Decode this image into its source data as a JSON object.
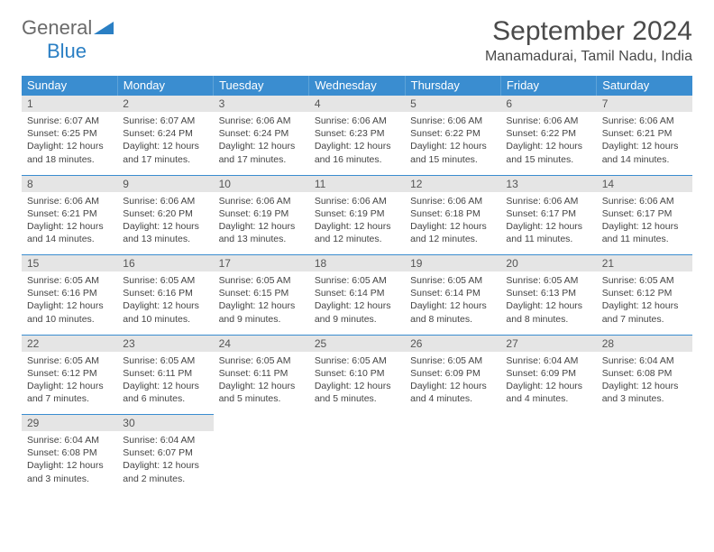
{
  "brand": {
    "general": "General",
    "blue": "Blue"
  },
  "title": "September 2024",
  "location": "Manamadurai, Tamil Nadu, India",
  "colors": {
    "header_bg": "#3a8dd0",
    "header_text": "#ffffff",
    "daynum_bg": "#e5e5e5",
    "border": "#3a8dd0",
    "text": "#444444",
    "brand_gray": "#6a6a6a",
    "brand_blue": "#2a7fc4"
  },
  "weekdays": [
    "Sunday",
    "Monday",
    "Tuesday",
    "Wednesday",
    "Thursday",
    "Friday",
    "Saturday"
  ],
  "weeks": [
    [
      {
        "n": "1",
        "sr": "6:07 AM",
        "ss": "6:25 PM",
        "dl": "12 hours and 18 minutes."
      },
      {
        "n": "2",
        "sr": "6:07 AM",
        "ss": "6:24 PM",
        "dl": "12 hours and 17 minutes."
      },
      {
        "n": "3",
        "sr": "6:06 AM",
        "ss": "6:24 PM",
        "dl": "12 hours and 17 minutes."
      },
      {
        "n": "4",
        "sr": "6:06 AM",
        "ss": "6:23 PM",
        "dl": "12 hours and 16 minutes."
      },
      {
        "n": "5",
        "sr": "6:06 AM",
        "ss": "6:22 PM",
        "dl": "12 hours and 15 minutes."
      },
      {
        "n": "6",
        "sr": "6:06 AM",
        "ss": "6:22 PM",
        "dl": "12 hours and 15 minutes."
      },
      {
        "n": "7",
        "sr": "6:06 AM",
        "ss": "6:21 PM",
        "dl": "12 hours and 14 minutes."
      }
    ],
    [
      {
        "n": "8",
        "sr": "6:06 AM",
        "ss": "6:21 PM",
        "dl": "12 hours and 14 minutes."
      },
      {
        "n": "9",
        "sr": "6:06 AM",
        "ss": "6:20 PM",
        "dl": "12 hours and 13 minutes."
      },
      {
        "n": "10",
        "sr": "6:06 AM",
        "ss": "6:19 PM",
        "dl": "12 hours and 13 minutes."
      },
      {
        "n": "11",
        "sr": "6:06 AM",
        "ss": "6:19 PM",
        "dl": "12 hours and 12 minutes."
      },
      {
        "n": "12",
        "sr": "6:06 AM",
        "ss": "6:18 PM",
        "dl": "12 hours and 12 minutes."
      },
      {
        "n": "13",
        "sr": "6:06 AM",
        "ss": "6:17 PM",
        "dl": "12 hours and 11 minutes."
      },
      {
        "n": "14",
        "sr": "6:06 AM",
        "ss": "6:17 PM",
        "dl": "12 hours and 11 minutes."
      }
    ],
    [
      {
        "n": "15",
        "sr": "6:05 AM",
        "ss": "6:16 PM",
        "dl": "12 hours and 10 minutes."
      },
      {
        "n": "16",
        "sr": "6:05 AM",
        "ss": "6:16 PM",
        "dl": "12 hours and 10 minutes."
      },
      {
        "n": "17",
        "sr": "6:05 AM",
        "ss": "6:15 PM",
        "dl": "12 hours and 9 minutes."
      },
      {
        "n": "18",
        "sr": "6:05 AM",
        "ss": "6:14 PM",
        "dl": "12 hours and 9 minutes."
      },
      {
        "n": "19",
        "sr": "6:05 AM",
        "ss": "6:14 PM",
        "dl": "12 hours and 8 minutes."
      },
      {
        "n": "20",
        "sr": "6:05 AM",
        "ss": "6:13 PM",
        "dl": "12 hours and 8 minutes."
      },
      {
        "n": "21",
        "sr": "6:05 AM",
        "ss": "6:12 PM",
        "dl": "12 hours and 7 minutes."
      }
    ],
    [
      {
        "n": "22",
        "sr": "6:05 AM",
        "ss": "6:12 PM",
        "dl": "12 hours and 7 minutes."
      },
      {
        "n": "23",
        "sr": "6:05 AM",
        "ss": "6:11 PM",
        "dl": "12 hours and 6 minutes."
      },
      {
        "n": "24",
        "sr": "6:05 AM",
        "ss": "6:11 PM",
        "dl": "12 hours and 5 minutes."
      },
      {
        "n": "25",
        "sr": "6:05 AM",
        "ss": "6:10 PM",
        "dl": "12 hours and 5 minutes."
      },
      {
        "n": "26",
        "sr": "6:05 AM",
        "ss": "6:09 PM",
        "dl": "12 hours and 4 minutes."
      },
      {
        "n": "27",
        "sr": "6:04 AM",
        "ss": "6:09 PM",
        "dl": "12 hours and 4 minutes."
      },
      {
        "n": "28",
        "sr": "6:04 AM",
        "ss": "6:08 PM",
        "dl": "12 hours and 3 minutes."
      }
    ],
    [
      {
        "n": "29",
        "sr": "6:04 AM",
        "ss": "6:08 PM",
        "dl": "12 hours and 3 minutes."
      },
      {
        "n": "30",
        "sr": "6:04 AM",
        "ss": "6:07 PM",
        "dl": "12 hours and 2 minutes."
      },
      null,
      null,
      null,
      null,
      null
    ]
  ],
  "labels": {
    "sunrise": "Sunrise:",
    "sunset": "Sunset:",
    "daylight": "Daylight:"
  }
}
